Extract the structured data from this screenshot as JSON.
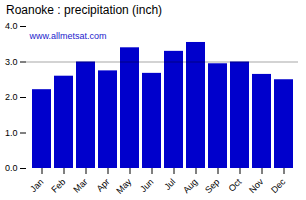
{
  "chart_data": {
    "type": "bar",
    "title": "Roanoke : precipitation (inch)",
    "categories": [
      "Jan",
      "Feb",
      "Mar",
      "Apr",
      "May",
      "Jun",
      "Jul",
      "Aug",
      "Sep",
      "Oct",
      "Nov",
      "Dec"
    ],
    "values": [
      2.22,
      2.6,
      3.0,
      2.75,
      3.4,
      2.68,
      3.3,
      3.55,
      2.95,
      3.0,
      2.65,
      2.5
    ],
    "color": "#0000CC",
    "ylim": [
      0,
      4
    ],
    "yticks": [
      0,
      1,
      2,
      3,
      4
    ],
    "hline": 3.0,
    "annotations": [
      {
        "text": "www.allmetsat.com",
        "color": "#2222cc"
      }
    ]
  }
}
